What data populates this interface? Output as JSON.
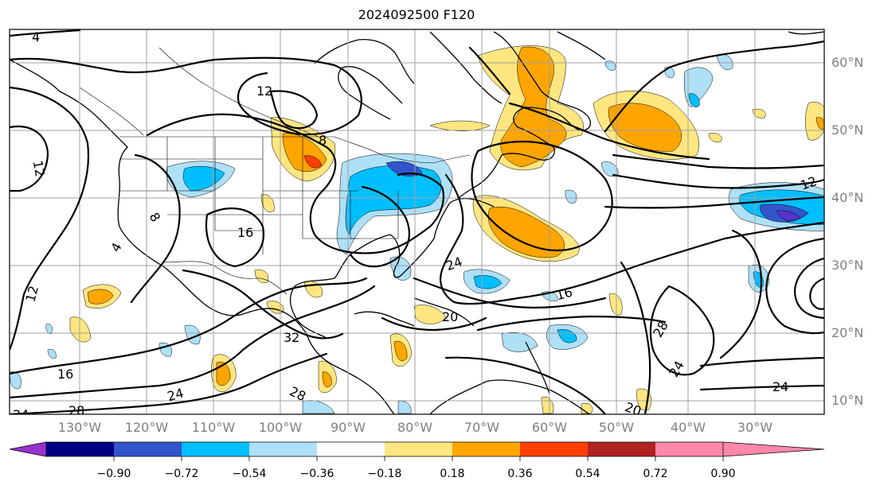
{
  "title": "2024092500 F120",
  "map": {
    "lat_labels": [
      "60°N",
      "50°N",
      "40°N",
      "30°N",
      "20°N",
      "10°N"
    ],
    "lon_labels": [
      "130°W",
      "120°W",
      "110°W",
      "100°W",
      "90°W",
      "80°W",
      "70°W",
      "60°W",
      "50°W",
      "40°W",
      "30°W"
    ],
    "contour_labels": [
      "4",
      "12",
      "8",
      "12",
      "8",
      "16",
      "4",
      "12",
      "24",
      "16",
      "20",
      "28",
      "24",
      "24",
      "12",
      "16",
      "24",
      "28",
      "24",
      "28",
      "20",
      "32"
    ]
  },
  "colorbar": {
    "ticks": [
      "−0.90",
      "−0.72",
      "−0.54",
      "−0.36",
      "−0.18",
      "0.18",
      "0.36",
      "0.54",
      "0.72",
      "0.90"
    ],
    "colors": [
      "#9933cc",
      "#000080",
      "#3355cc",
      "#00bfff",
      "#aee0f7",
      "#ffffff",
      "#ffe680",
      "#ffa500",
      "#ff4000",
      "#b22222",
      "#ff88aa"
    ]
  }
}
